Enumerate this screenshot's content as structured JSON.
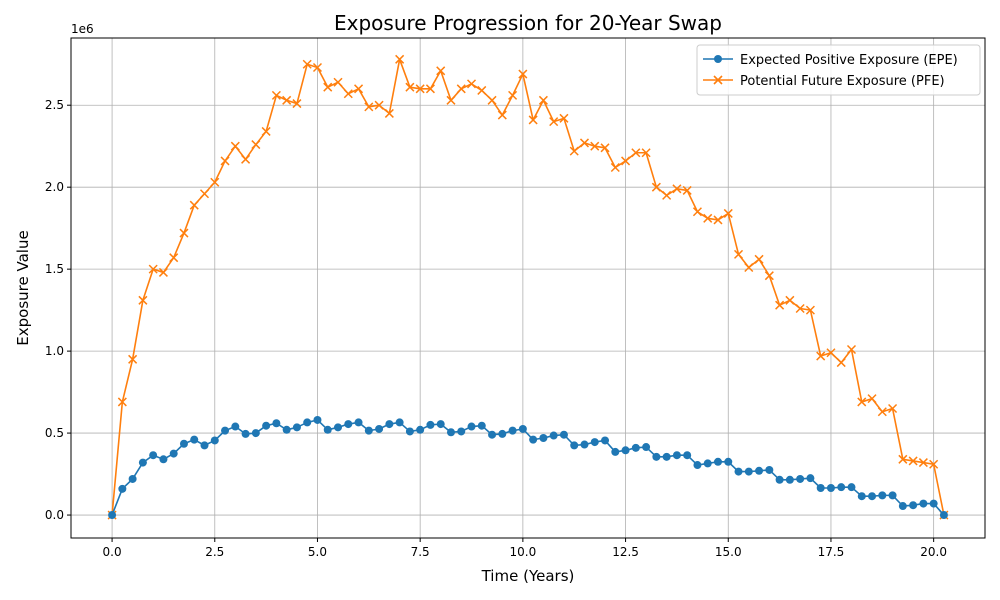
{
  "chart_data": {
    "type": "line",
    "title": "Exposure Progression for 20-Year Swap",
    "xlabel": "Time (Years)",
    "ylabel": "Exposure Value",
    "y_offset_label": "1e6",
    "xlim": [
      -1.0,
      21.25
    ],
    "ylim": [
      -140000,
      2910000
    ],
    "x_ticks": [
      0.0,
      2.5,
      5.0,
      7.5,
      10.0,
      12.5,
      15.0,
      17.5,
      20.0
    ],
    "x_tick_labels": [
      "0.0",
      "2.5",
      "5.0",
      "7.5",
      "10.0",
      "12.5",
      "15.0",
      "17.5",
      "20.0"
    ],
    "y_ticks": [
      0,
      500000,
      1000000,
      1500000,
      2000000,
      2500000
    ],
    "y_tick_labels": [
      "0.0",
      "0.5",
      "1.0",
      "1.5",
      "2.0",
      "2.5"
    ],
    "grid": true,
    "legend_position": "top-right",
    "x": [
      0.0,
      0.25,
      0.5,
      0.75,
      1.0,
      1.25,
      1.5,
      1.75,
      2.0,
      2.25,
      2.5,
      2.75,
      3.0,
      3.25,
      3.5,
      3.75,
      4.0,
      4.25,
      4.5,
      4.75,
      5.0,
      5.25,
      5.5,
      5.75,
      6.0,
      6.25,
      6.5,
      6.75,
      7.0,
      7.25,
      7.5,
      7.75,
      8.0,
      8.25,
      8.5,
      8.75,
      9.0,
      9.25,
      9.5,
      9.75,
      10.0,
      10.25,
      10.5,
      10.75,
      11.0,
      11.25,
      11.5,
      11.75,
      12.0,
      12.25,
      12.5,
      12.75,
      13.0,
      13.25,
      13.5,
      13.75,
      14.0,
      14.25,
      14.5,
      14.75,
      15.0,
      15.25,
      15.5,
      15.75,
      16.0,
      16.25,
      16.5,
      16.75,
      17.0,
      17.25,
      17.5,
      17.75,
      18.0,
      18.25,
      18.5,
      18.75,
      19.0,
      19.25,
      19.5,
      19.75,
      20.0,
      20.25
    ],
    "series": [
      {
        "name": "Expected Positive Exposure (EPE)",
        "color": "#1f77b4",
        "marker": "circle",
        "values": [
          0,
          160000,
          220000,
          320000,
          365000,
          340000,
          375000,
          435000,
          460000,
          425000,
          455000,
          515000,
          540000,
          495000,
          500000,
          545000,
          560000,
          520000,
          535000,
          565000,
          580000,
          520000,
          535000,
          555000,
          565000,
          515000,
          525000,
          555000,
          565000,
          510000,
          520000,
          550000,
          555000,
          505000,
          510000,
          540000,
          545000,
          490000,
          495000,
          515000,
          525000,
          460000,
          470000,
          485000,
          490000,
          425000,
          430000,
          445000,
          455000,
          385000,
          395000,
          410000,
          415000,
          355000,
          355000,
          365000,
          365000,
          305000,
          315000,
          325000,
          325000,
          265000,
          265000,
          270000,
          275000,
          215000,
          215000,
          220000,
          225000,
          165000,
          165000,
          170000,
          170000,
          115000,
          115000,
          120000,
          120000,
          55000,
          60000,
          70000,
          70000,
          0
        ]
      },
      {
        "name": "Potential Future Exposure (PFE)",
        "color": "#ff7f0e",
        "marker": "x",
        "values": [
          0,
          690000,
          950000,
          1310000,
          1500000,
          1480000,
          1570000,
          1720000,
          1890000,
          1960000,
          2030000,
          2160000,
          2250000,
          2170000,
          2260000,
          2340000,
          2560000,
          2530000,
          2510000,
          2750000,
          2730000,
          2610000,
          2640000,
          2570000,
          2600000,
          2490000,
          2500000,
          2450000,
          2780000,
          2610000,
          2600000,
          2600000,
          2710000,
          2530000,
          2600000,
          2630000,
          2590000,
          2530000,
          2440000,
          2560000,
          2690000,
          2410000,
          2530000,
          2400000,
          2420000,
          2220000,
          2270000,
          2250000,
          2240000,
          2120000,
          2160000,
          2210000,
          2210000,
          2000000,
          1950000,
          1990000,
          1980000,
          1850000,
          1810000,
          1800000,
          1840000,
          1590000,
          1510000,
          1560000,
          1460000,
          1280000,
          1310000,
          1260000,
          1250000,
          970000,
          990000,
          930000,
          1010000,
          690000,
          710000,
          630000,
          650000,
          340000,
          330000,
          320000,
          310000,
          0
        ]
      }
    ]
  }
}
